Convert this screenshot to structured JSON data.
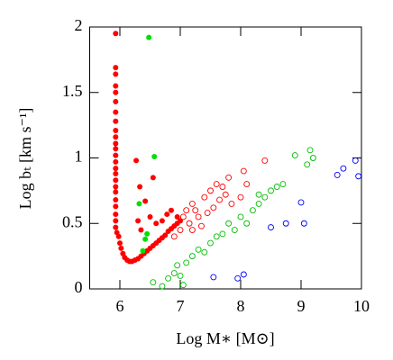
{
  "chart_data": {
    "type": "scatter",
    "x_label": "Log M∗ [M⊙]",
    "y_label": "Log bₜ [km s⁻¹]",
    "xlim": [
      5.5,
      10
    ],
    "ylim": [
      0,
      2
    ],
    "xticks": [
      6,
      7,
      8,
      9,
      10
    ],
    "yticks": [
      0,
      0.5,
      1,
      1.5,
      2
    ],
    "series": [
      {
        "color": "#ff0000",
        "filled": true,
        "x": [
          5.93,
          5.93,
          5.93,
          5.93,
          5.93,
          5.93,
          5.93,
          5.93,
          5.93,
          5.93,
          5.93,
          5.93,
          5.93,
          5.93,
          5.93,
          5.93,
          5.93,
          5.93,
          5.93,
          5.93,
          5.93,
          5.93,
          5.93,
          5.93,
          5.95,
          5.98,
          6.0,
          6.02,
          6.05,
          6.08,
          6.12,
          6.16,
          6.2,
          6.25,
          6.3,
          6.35,
          6.4,
          6.45,
          6.5,
          6.55,
          6.6,
          6.65,
          6.7,
          6.75,
          6.8,
          6.85,
          6.9,
          6.95,
          7.0,
          6.27,
          6.33,
          6.55,
          6.42,
          6.5,
          6.6,
          6.3,
          6.35,
          6.78,
          6.85,
          6.95,
          6.7
        ],
        "values": [
          1.95,
          1.69,
          1.64,
          1.55,
          1.5,
          1.43,
          1.35,
          1.28,
          1.21,
          1.16,
          1.11,
          1.07,
          1.02,
          0.97,
          0.92,
          0.88,
          0.83,
          0.78,
          0.74,
          0.68,
          0.63,
          0.57,
          0.52,
          0.47,
          0.43,
          0.4,
          0.35,
          0.31,
          0.27,
          0.24,
          0.22,
          0.21,
          0.21,
          0.22,
          0.23,
          0.25,
          0.27,
          0.29,
          0.31,
          0.33,
          0.35,
          0.37,
          0.39,
          0.41,
          0.44,
          0.46,
          0.48,
          0.5,
          0.52,
          0.98,
          0.78,
          0.85,
          0.67,
          0.55,
          0.5,
          0.52,
          0.45,
          0.57,
          0.6,
          0.55,
          0.52
        ]
      },
      {
        "color": "#00e000",
        "filled": true,
        "x": [
          6.48,
          6.57,
          6.32,
          6.45,
          6.42,
          6.38
        ],
        "values": [
          1.92,
          1.01,
          0.65,
          0.42,
          0.38,
          0.29
        ]
      },
      {
        "color": "#ff0000",
        "filled": false,
        "x": [
          7.05,
          7.1,
          7.2,
          7.25,
          7.3,
          7.15,
          7.4,
          7.5,
          7.6,
          7.7,
          7.8,
          7.75,
          7.65,
          7.55,
          8.05,
          8.1,
          8.4,
          7.35,
          7.0,
          6.9,
          7.45,
          7.85,
          8.0,
          7.2
        ],
        "values": [
          0.55,
          0.6,
          0.65,
          0.6,
          0.55,
          0.5,
          0.7,
          0.75,
          0.8,
          0.78,
          0.85,
          0.72,
          0.68,
          0.62,
          0.9,
          0.8,
          0.98,
          0.48,
          0.45,
          0.4,
          0.58,
          0.65,
          0.7,
          0.45
        ]
      },
      {
        "color": "#00c000",
        "filled": false,
        "x": [
          6.55,
          6.7,
          6.8,
          6.9,
          7.0,
          7.1,
          7.2,
          7.3,
          7.5,
          7.6,
          7.7,
          7.8,
          7.9,
          8.0,
          8.2,
          8.3,
          8.4,
          8.5,
          8.6,
          8.7,
          8.9,
          9.15,
          9.2,
          9.1,
          6.95,
          7.4,
          8.1,
          8.3,
          7.05
        ],
        "values": [
          0.05,
          0.02,
          0.08,
          0.12,
          0.1,
          0.2,
          0.25,
          0.3,
          0.35,
          0.4,
          0.42,
          0.5,
          0.45,
          0.55,
          0.6,
          0.65,
          0.7,
          0.75,
          0.78,
          0.8,
          1.02,
          1.06,
          1.0,
          0.95,
          0.18,
          0.28,
          0.5,
          0.72,
          0.03
        ]
      },
      {
        "color": "#0000ff",
        "filled": false,
        "x": [
          7.55,
          7.95,
          8.05,
          8.5,
          8.75,
          9.0,
          9.05,
          9.6,
          9.7,
          9.9,
          9.95
        ],
        "values": [
          0.09,
          0.08,
          0.11,
          0.47,
          0.5,
          0.66,
          0.5,
          0.87,
          0.92,
          0.98,
          0.86
        ]
      }
    ]
  }
}
